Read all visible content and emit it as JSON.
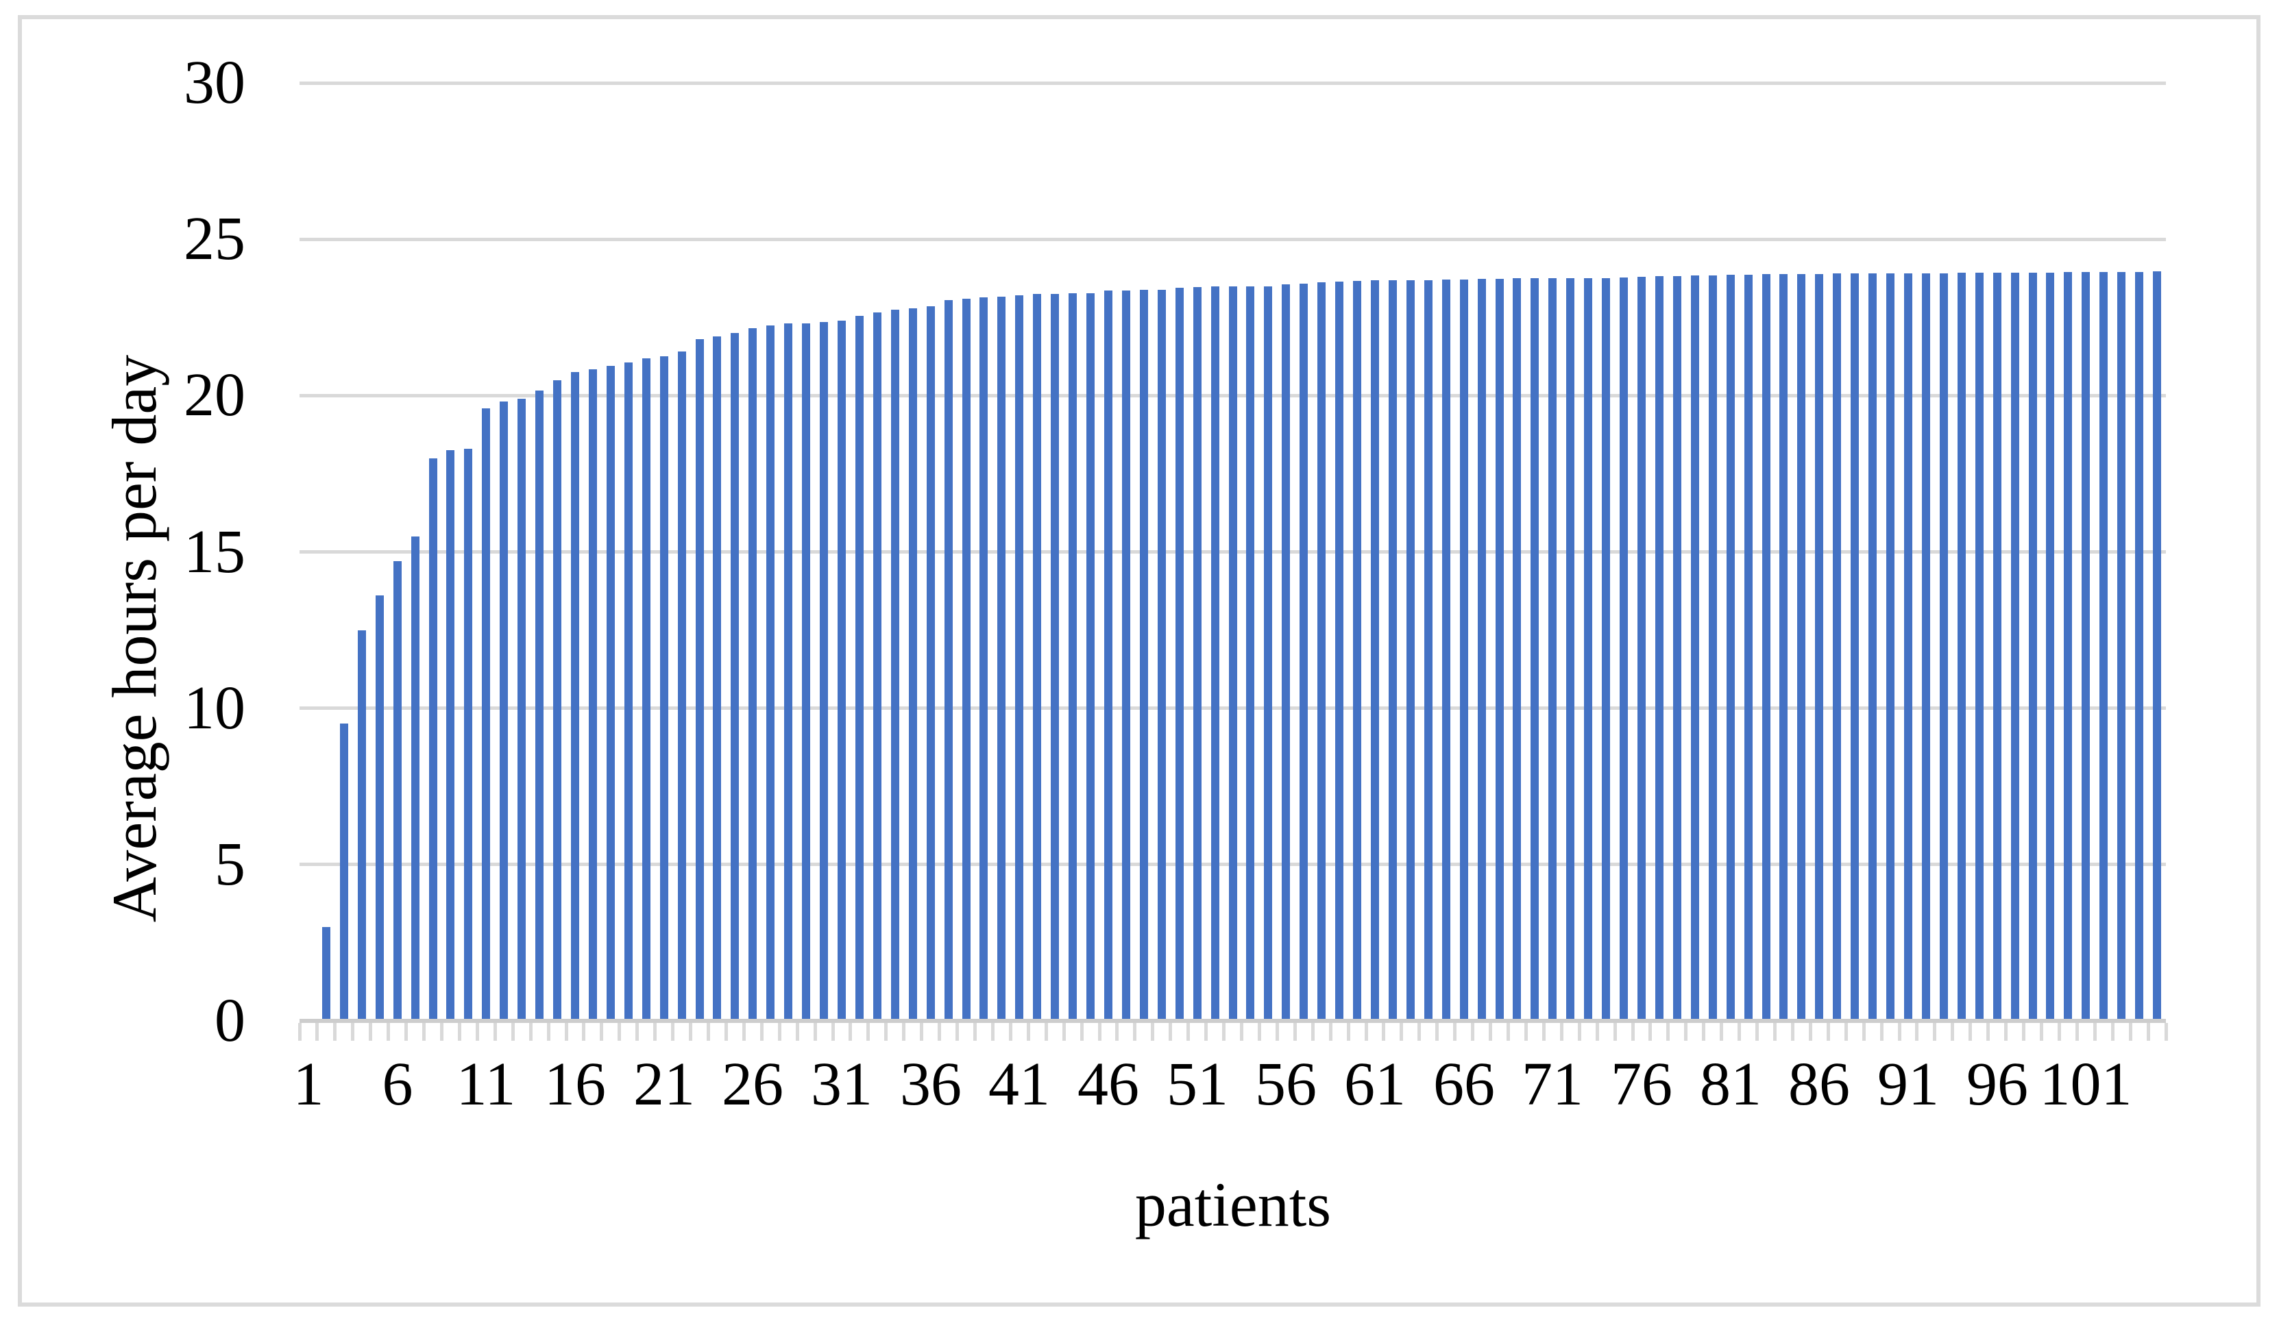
{
  "figure": {
    "xlabel": "patients",
    "ylabel": "Average hours per day"
  },
  "colors": {
    "bar": "#4472C4",
    "gridline": "#D9D9D9",
    "axis_line": "#CDCDCD",
    "tick": "#D9D9D9",
    "frame_border": "#DBDBDB",
    "text": "#000000",
    "background": "#FFFFFF"
  },
  "chart_data": {
    "type": "bar",
    "title": "",
    "xlabel": "patients",
    "ylabel": "Average hours per day",
    "ylim": [
      0,
      30
    ],
    "ytick_labels": [
      "0",
      "5",
      "10",
      "15",
      "20",
      "25",
      "30"
    ],
    "yticks": [
      0,
      5,
      10,
      15,
      20,
      25,
      30
    ],
    "xtick_labels": [
      "1",
      "6",
      "11",
      "16",
      "21",
      "26",
      "31",
      "36",
      "41",
      "46",
      "51",
      "56",
      "61",
      "66",
      "71",
      "76",
      "81",
      "86",
      "91",
      "96",
      "101"
    ],
    "xtick_positions": [
      1,
      6,
      11,
      16,
      21,
      26,
      31,
      36,
      41,
      46,
      51,
      56,
      61,
      66,
      71,
      76,
      81,
      86,
      91,
      96,
      101
    ],
    "n_categories": 105,
    "grid": true,
    "legend_position": "none",
    "bar_sorted_ascending": true,
    "values": [
      0,
      3.0,
      9.5,
      12.5,
      13.6,
      14.7,
      15.5,
      18.0,
      18.25,
      18.3,
      19.6,
      19.8,
      19.9,
      20.15,
      20.5,
      20.75,
      20.85,
      20.95,
      21.05,
      21.2,
      21.25,
      21.4,
      21.8,
      21.9,
      22.0,
      22.15,
      22.25,
      22.3,
      22.3,
      22.35,
      22.4,
      22.55,
      22.65,
      22.75,
      22.8,
      22.85,
      23.05,
      23.1,
      23.15,
      23.17,
      23.2,
      23.25,
      23.26,
      23.28,
      23.28,
      23.35,
      23.37,
      23.38,
      23.39,
      23.44,
      23.48,
      23.49,
      23.5,
      23.5,
      23.5,
      23.55,
      23.58,
      23.62,
      23.65,
      23.67,
      23.68,
      23.68,
      23.69,
      23.69,
      23.7,
      23.72,
      23.74,
      23.74,
      23.75,
      23.75,
      23.76,
      23.76,
      23.76,
      23.76,
      23.77,
      23.8,
      23.81,
      23.82,
      23.84,
      23.85,
      23.86,
      23.87,
      23.88,
      23.88,
      23.89,
      23.89,
      23.9,
      23.9,
      23.9,
      23.9,
      23.9,
      23.91,
      23.91,
      23.92,
      23.92,
      23.92,
      23.93,
      23.94,
      23.94,
      23.95,
      23.95,
      23.95,
      23.96,
      23.96,
      23.97
    ]
  }
}
